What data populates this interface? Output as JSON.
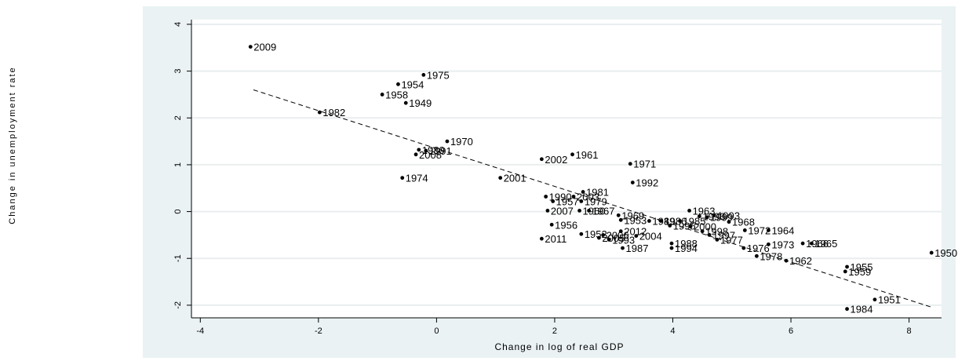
{
  "chart_data": {
    "type": "scatter",
    "xlabel": "Change in log of real GDP",
    "ylabel": "Change in unemployment rate",
    "xlim": [
      -4.15,
      8.55
    ],
    "ylim": [
      -2.27,
      4.1
    ],
    "xticks": [
      -4,
      -2,
      0,
      2,
      4,
      6,
      8
    ],
    "yticks": [
      -2,
      -1,
      0,
      1,
      2,
      3,
      4
    ],
    "grid": true,
    "fit_line": {
      "x": [
        -3.1,
        8.4
      ],
      "y": [
        2.6,
        -2.05
      ],
      "style": "dashed"
    },
    "points": [
      {
        "label": "2009",
        "x": -3.15,
        "y": 3.52
      },
      {
        "label": "1982",
        "x": -1.98,
        "y": 2.12
      },
      {
        "label": "1975",
        "x": -0.22,
        "y": 2.92
      },
      {
        "label": "1954",
        "x": -0.65,
        "y": 2.72
      },
      {
        "label": "1958",
        "x": -0.92,
        "y": 2.5
      },
      {
        "label": "1949",
        "x": -0.52,
        "y": 2.32
      },
      {
        "label": "1970",
        "x": 0.18,
        "y": 1.5
      },
      {
        "label": "1980",
        "x": -0.3,
        "y": 1.32
      },
      {
        "label": "1991",
        "x": -0.18,
        "y": 1.3
      },
      {
        "label": "2008",
        "x": -0.35,
        "y": 1.22
      },
      {
        "label": "1974",
        "x": -0.58,
        "y": 0.72
      },
      {
        "label": "2001",
        "x": 1.08,
        "y": 0.72
      },
      {
        "label": "2002",
        "x": 1.78,
        "y": 1.12
      },
      {
        "label": "1961",
        "x": 2.3,
        "y": 1.22
      },
      {
        "label": "1971",
        "x": 3.28,
        "y": 1.02
      },
      {
        "label": "1992",
        "x": 3.32,
        "y": 0.62
      },
      {
        "label": "1981",
        "x": 2.48,
        "y": 0.42
      },
      {
        "label": "1990",
        "x": 1.85,
        "y": 0.32
      },
      {
        "label": "1957",
        "x": 1.97,
        "y": 0.22
      },
      {
        "label": "2003",
        "x": 2.32,
        "y": 0.32
      },
      {
        "label": "1979",
        "x": 2.45,
        "y": 0.22
      },
      {
        "label": "2007",
        "x": 1.88,
        "y": 0.02
      },
      {
        "label": "1960",
        "x": 2.42,
        "y": 0.02
      },
      {
        "label": "1967",
        "x": 2.58,
        "y": 0.02
      },
      {
        "label": "1969",
        "x": 3.08,
        "y": -0.08
      },
      {
        "label": "1953",
        "x": 3.12,
        "y": -0.18
      },
      {
        "label": "1989",
        "x": 3.6,
        "y": -0.2
      },
      {
        "label": "1986",
        "x": 3.8,
        "y": -0.2
      },
      {
        "label": "1995",
        "x": 3.95,
        "y": -0.3
      },
      {
        "label": "1985",
        "x": 4.12,
        "y": -0.2
      },
      {
        "label": "1963",
        "x": 4.28,
        "y": 0.02
      },
      {
        "label": "1996",
        "x": 4.45,
        "y": -0.1
      },
      {
        "label": "1999",
        "x": 4.58,
        "y": -0.12
      },
      {
        "label": "1993",
        "x": 4.7,
        "y": -0.08
      },
      {
        "label": "1968",
        "x": 4.95,
        "y": -0.22
      },
      {
        "label": "2000",
        "x": 4.3,
        "y": -0.32
      },
      {
        "label": "1998",
        "x": 4.5,
        "y": -0.42
      },
      {
        "label": "1997",
        "x": 4.62,
        "y": -0.5
      },
      {
        "label": "1977",
        "x": 4.75,
        "y": -0.6
      },
      {
        "label": "1972",
        "x": 5.22,
        "y": -0.4
      },
      {
        "label": "1964",
        "x": 5.62,
        "y": -0.4
      },
      {
        "label": "1956",
        "x": 1.95,
        "y": -0.28
      },
      {
        "label": "2011",
        "x": 1.78,
        "y": -0.58
      },
      {
        "label": "1952",
        "x": 2.45,
        "y": -0.48
      },
      {
        "label": "2006",
        "x": 2.82,
        "y": -0.5
      },
      {
        "label": "2005",
        "x": 2.75,
        "y": -0.56
      },
      {
        "label": "1993",
        "x": 2.92,
        "y": -0.6
      },
      {
        "label": "2012",
        "x": 3.12,
        "y": -0.42
      },
      {
        "label": "2004",
        "x": 3.38,
        "y": -0.52
      },
      {
        "label": "1987",
        "x": 3.15,
        "y": -0.78
      },
      {
        "label": "1988",
        "x": 3.98,
        "y": -0.68
      },
      {
        "label": "1994",
        "x": 3.98,
        "y": -0.78
      },
      {
        "label": "1973",
        "x": 5.62,
        "y": -0.7
      },
      {
        "label": "1966",
        "x": 6.2,
        "y": -0.68
      },
      {
        "label": "1965",
        "x": 6.35,
        "y": -0.68
      },
      {
        "label": "1976",
        "x": 5.2,
        "y": -0.78
      },
      {
        "label": "1978",
        "x": 5.42,
        "y": -0.95
      },
      {
        "label": "1962",
        "x": 5.92,
        "y": -1.05
      },
      {
        "label": "1950",
        "x": 8.38,
        "y": -0.88
      },
      {
        "label": "1955",
        "x": 6.95,
        "y": -1.18
      },
      {
        "label": "1959",
        "x": 6.92,
        "y": -1.28
      },
      {
        "label": "1951",
        "x": 7.42,
        "y": -1.88
      },
      {
        "label": "1984",
        "x": 6.95,
        "y": -2.08
      }
    ]
  }
}
